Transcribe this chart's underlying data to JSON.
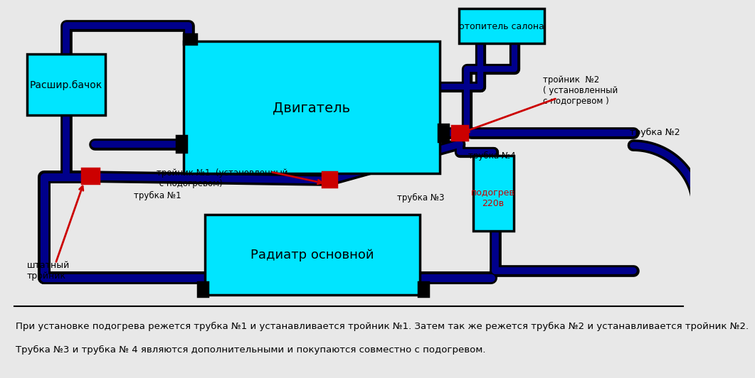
{
  "bg_color": "#e8e8e8",
  "diagram_bg": "#ffffff",
  "cyan_color": "#00e5ff",
  "dark_blue": "#00008B",
  "red_color": "#cc0000",
  "black_color": "#000000",
  "footer_text1": "При установке подогрева режется трубка №1 и устанавливается тройник №1. Затем так же режется трубка №2 и устанавливается тройник №2.",
  "footer_text2": "Трубка №3 и трубка № 4 являются дополнительными и покупаются совместно с подогревом.",
  "label_engine": "Двигатель",
  "label_radiator": "Радиатр основной",
  "label_rasshbachok": "Расшир.бачок",
  "label_otopit": "отопитель салона",
  "label_trojnik1": "тройник №1  (установленный\n с подогревом)",
  "label_trojnik2": "тройник  №2\n( установленный\nс подогревом )",
  "label_trubka1": "трубка №1",
  "label_trubka2": "трубка №2",
  "label_trubka3": "трубка №3",
  "label_trubka4": "трубка №4",
  "label_podogrev": "подогрев\n220в",
  "label_shtatny": "штатный\nтройник"
}
